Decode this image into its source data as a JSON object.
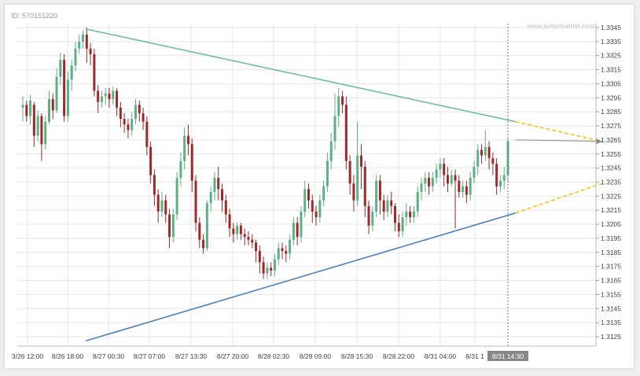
{
  "chart_id": "ID: 570151220",
  "watermark": "www.autochartist.com",
  "colors": {
    "bull": "#5cb085",
    "bear": "#9c2a2a",
    "resistance": "#6ebf96",
    "support": "#4f7fbf",
    "projection": "#f5c518",
    "grid": "#e6e6e6"
  },
  "chart_data": {
    "type": "candlestick",
    "ylim": [
      1.3115,
      1.335
    ],
    "y_ticks": [
      "1.3125",
      "1.3135",
      "1.3145",
      "1.3155",
      "1.3165",
      "1.3175",
      "1.3185",
      "1.3195",
      "1.3205",
      "1.3215",
      "1.3225",
      "1.3235",
      "1.3245",
      "1.3255",
      "1.3265",
      "1.3275",
      "1.3285",
      "1.3295",
      "1.3305",
      "1.3315",
      "1.3325",
      "1.3335",
      "1.3345"
    ],
    "x_ticks": [
      "3/26 12:00",
      "8/26 18:00",
      "8/27 00:30",
      "8/27 07:00",
      "8/27 13:30",
      "8/27 20:00",
      "8/28 02:30",
      "8/28 09:00",
      "8/28 15:30",
      "8/28 22:00",
      "8/31 04:00",
      "8/31 1"
    ],
    "current_time_label": "8/31 14:30",
    "candles": [
      [
        1.3288,
        1.329,
        1.3278,
        1.3296
      ],
      [
        1.329,
        1.3282,
        1.3278,
        1.3293
      ],
      [
        1.3282,
        1.3293,
        1.3276,
        1.3297
      ],
      [
        1.329,
        1.3268,
        1.326,
        1.3292
      ],
      [
        1.3268,
        1.3282,
        1.3264,
        1.3286
      ],
      [
        1.3282,
        1.3262,
        1.325,
        1.3284
      ],
      [
        1.3262,
        1.3278,
        1.3258,
        1.3282
      ],
      [
        1.3278,
        1.3294,
        1.3276,
        1.33
      ],
      [
        1.3294,
        1.3286,
        1.328,
        1.3298
      ],
      [
        1.3286,
        1.331,
        1.3284,
        1.3316
      ],
      [
        1.331,
        1.3322,
        1.3304,
        1.3327
      ],
      [
        1.3322,
        1.3282,
        1.3278,
        1.3326
      ],
      [
        1.3282,
        1.3308,
        1.3278,
        1.3314
      ],
      [
        1.3308,
        1.3318,
        1.33,
        1.3322
      ],
      [
        1.3318,
        1.333,
        1.3314,
        1.3335
      ],
      [
        1.333,
        1.3335,
        1.3326,
        1.334
      ],
      [
        1.3335,
        1.334,
        1.333,
        1.3343
      ],
      [
        1.334,
        1.333,
        1.332,
        1.3345
      ],
      [
        1.333,
        1.3326,
        1.3318,
        1.3334
      ],
      [
        1.3326,
        1.33,
        1.3296,
        1.333
      ],
      [
        1.33,
        1.3292,
        1.3284,
        1.3304
      ],
      [
        1.3292,
        1.3296,
        1.3288,
        1.33
      ],
      [
        1.3296,
        1.3298,
        1.329,
        1.3302
      ],
      [
        1.3298,
        1.3294,
        1.3288,
        1.3302
      ],
      [
        1.3294,
        1.33,
        1.329,
        1.3303
      ],
      [
        1.33,
        1.3288,
        1.3282,
        1.3302
      ],
      [
        1.3288,
        1.328,
        1.3274,
        1.3292
      ],
      [
        1.328,
        1.3276,
        1.327,
        1.3284
      ],
      [
        1.3276,
        1.3272,
        1.3266,
        1.328
      ],
      [
        1.3272,
        1.328,
        1.3268,
        1.3285
      ],
      [
        1.328,
        1.329,
        1.3276,
        1.3294
      ],
      [
        1.329,
        1.3284,
        1.3278,
        1.3293
      ],
      [
        1.3284,
        1.3278,
        1.3272,
        1.3288
      ],
      [
        1.3278,
        1.326,
        1.3254,
        1.3282
      ],
      [
        1.326,
        1.324,
        1.3234,
        1.3264
      ],
      [
        1.324,
        1.3226,
        1.3218,
        1.3244
      ],
      [
        1.3226,
        1.3214,
        1.3206,
        1.323
      ],
      [
        1.3214,
        1.3222,
        1.321,
        1.3228
      ],
      [
        1.3222,
        1.3212,
        1.3206,
        1.3226
      ],
      [
        1.3212,
        1.3196,
        1.3188,
        1.3216
      ],
      [
        1.3196,
        1.3212,
        1.3192,
        1.3216
      ],
      [
        1.3212,
        1.3238,
        1.3208,
        1.3242
      ],
      [
        1.3238,
        1.325,
        1.3232,
        1.3256
      ],
      [
        1.325,
        1.3268,
        1.3244,
        1.3274
      ],
      [
        1.3268,
        1.3262,
        1.3254,
        1.3276
      ],
      [
        1.3262,
        1.3236,
        1.3228,
        1.3266
      ],
      [
        1.3236,
        1.3206,
        1.32,
        1.324
      ],
      [
        1.3206,
        1.3194,
        1.3188,
        1.321
      ],
      [
        1.3194,
        1.3188,
        1.3184,
        1.3198
      ],
      [
        1.3188,
        1.322,
        1.3186,
        1.3222
      ],
      [
        1.322,
        1.3228,
        1.3214,
        1.3232
      ],
      [
        1.3228,
        1.3238,
        1.3222,
        1.3242
      ],
      [
        1.3238,
        1.323,
        1.3222,
        1.3246
      ],
      [
        1.323,
        1.3222,
        1.3214,
        1.3234
      ],
      [
        1.3222,
        1.3212,
        1.3206,
        1.3226
      ],
      [
        1.3212,
        1.3202,
        1.3196,
        1.3216
      ],
      [
        1.3202,
        1.3198,
        1.3192,
        1.3206
      ],
      [
        1.3198,
        1.3204,
        1.3194,
        1.3206
      ],
      [
        1.3204,
        1.3198,
        1.3194,
        1.3206
      ],
      [
        1.3198,
        1.3196,
        1.319,
        1.3202
      ],
      [
        1.3196,
        1.3194,
        1.319,
        1.32
      ],
      [
        1.3194,
        1.3192,
        1.3188,
        1.3198
      ],
      [
        1.3192,
        1.3186,
        1.3178,
        1.3194
      ],
      [
        1.3186,
        1.3178,
        1.317,
        1.319
      ],
      [
        1.3178,
        1.317,
        1.3166,
        1.3182
      ],
      [
        1.317,
        1.3174,
        1.3166,
        1.3178
      ],
      [
        1.3174,
        1.3172,
        1.3168,
        1.3178
      ],
      [
        1.3172,
        1.318,
        1.3168,
        1.3184
      ],
      [
        1.318,
        1.3188,
        1.3176,
        1.3192
      ],
      [
        1.3188,
        1.3186,
        1.318,
        1.3192
      ],
      [
        1.3186,
        1.3184,
        1.3178,
        1.319
      ],
      [
        1.3184,
        1.3194,
        1.318,
        1.3198
      ],
      [
        1.3194,
        1.3206,
        1.319,
        1.321
      ],
      [
        1.3206,
        1.3196,
        1.319,
        1.321
      ],
      [
        1.3196,
        1.3214,
        1.3192,
        1.3218
      ],
      [
        1.3214,
        1.323,
        1.321,
        1.3236
      ],
      [
        1.323,
        1.3222,
        1.3216,
        1.3234
      ],
      [
        1.3222,
        1.3214,
        1.3206,
        1.3226
      ],
      [
        1.3214,
        1.321,
        1.3204,
        1.3218
      ],
      [
        1.321,
        1.3222,
        1.3206,
        1.3226
      ],
      [
        1.3222,
        1.3232,
        1.3218,
        1.3236
      ],
      [
        1.3232,
        1.325,
        1.3228,
        1.3256
      ],
      [
        1.325,
        1.3264,
        1.3244,
        1.327
      ],
      [
        1.3264,
        1.3282,
        1.3258,
        1.3298
      ],
      [
        1.3282,
        1.3296,
        1.3274,
        1.3302
      ],
      [
        1.3296,
        1.329,
        1.3284,
        1.33
      ],
      [
        1.329,
        1.325,
        1.3244,
        1.3296
      ],
      [
        1.325,
        1.3234,
        1.3226,
        1.3254
      ],
      [
        1.3234,
        1.3222,
        1.3214,
        1.324
      ],
      [
        1.3222,
        1.3254,
        1.3218,
        1.3278
      ],
      [
        1.3254,
        1.3246,
        1.323,
        1.3262
      ],
      [
        1.3246,
        1.3218,
        1.321,
        1.325
      ],
      [
        1.3218,
        1.3204,
        1.3198,
        1.3222
      ],
      [
        1.3204,
        1.3214,
        1.32,
        1.3218
      ],
      [
        1.3214,
        1.3236,
        1.321,
        1.324
      ],
      [
        1.3236,
        1.3222,
        1.3212,
        1.324
      ],
      [
        1.3222,
        1.3214,
        1.3208,
        1.3226
      ],
      [
        1.3214,
        1.3222,
        1.321,
        1.3226
      ],
      [
        1.3222,
        1.3218,
        1.3212,
        1.3228
      ],
      [
        1.3218,
        1.3206,
        1.32,
        1.322
      ],
      [
        1.3206,
        1.32,
        1.3196,
        1.3212
      ],
      [
        1.32,
        1.321,
        1.3196,
        1.3214
      ],
      [
        1.321,
        1.3214,
        1.3204,
        1.322
      ],
      [
        1.3214,
        1.321,
        1.3206,
        1.3218
      ],
      [
        1.321,
        1.3214,
        1.3206,
        1.3218
      ],
      [
        1.3214,
        1.3228,
        1.321,
        1.3232
      ],
      [
        1.3228,
        1.3234,
        1.3222,
        1.3238
      ],
      [
        1.3234,
        1.3238,
        1.3228,
        1.3242
      ],
      [
        1.3238,
        1.3232,
        1.3226,
        1.3242
      ],
      [
        1.3232,
        1.3238,
        1.3228,
        1.3242
      ],
      [
        1.3238,
        1.3244,
        1.3234,
        1.3248
      ],
      [
        1.3244,
        1.3248,
        1.3238,
        1.3252
      ],
      [
        1.3248,
        1.324,
        1.3232,
        1.3252
      ],
      [
        1.324,
        1.3234,
        1.3228,
        1.3246
      ],
      [
        1.3234,
        1.324,
        1.3232,
        1.3244
      ],
      [
        1.324,
        1.3236,
        1.3202,
        1.3244
      ],
      [
        1.3236,
        1.3228,
        1.3224,
        1.324
      ],
      [
        1.3228,
        1.3232,
        1.3224,
        1.3236
      ],
      [
        1.3232,
        1.3226,
        1.322,
        1.3236
      ],
      [
        1.3226,
        1.3238,
        1.3222,
        1.3242
      ],
      [
        1.3238,
        1.3246,
        1.3234,
        1.325
      ],
      [
        1.3246,
        1.3258,
        1.324,
        1.3262
      ],
      [
        1.3258,
        1.3254,
        1.3248,
        1.3262
      ],
      [
        1.3254,
        1.326,
        1.325,
        1.3272
      ],
      [
        1.326,
        1.3252,
        1.3244,
        1.3264
      ],
      [
        1.3252,
        1.3248,
        1.324,
        1.3256
      ],
      [
        1.3248,
        1.3232,
        1.3226,
        1.3252
      ],
      [
        1.3232,
        1.3236,
        1.3228,
        1.324
      ],
      [
        1.3236,
        1.324,
        1.323,
        1.3246
      ],
      [
        1.324,
        1.3264,
        1.3236,
        1.3266
      ]
    ],
    "resistance_line": {
      "from": [
        0,
        1.3344
      ],
      "to": [
        131,
        1.3278
      ]
    },
    "support_line": {
      "from": [
        0,
        1.3122
      ],
      "to": [
        131,
        1.3213
      ]
    },
    "projection_upper": {
      "from": [
        131,
        1.3278
      ],
      "to": [
        154,
        1.3264
      ]
    },
    "projection_lower": {
      "from": [
        131,
        1.3213
      ],
      "to": [
        154,
        1.3234
      ]
    },
    "last_price_arrow": {
      "from": [
        131,
        1.3265
      ],
      "to": [
        154,
        1.3264
      ]
    }
  }
}
